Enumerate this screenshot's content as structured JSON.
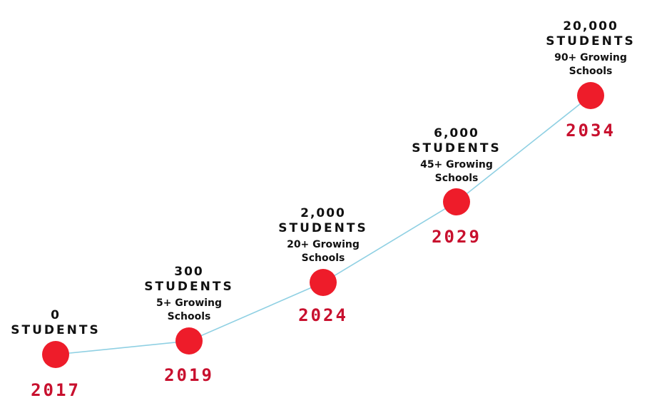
{
  "colors": {
    "marker": "#ee1c2a",
    "line": "#8fd0e3",
    "year": "#c8102e",
    "text": "#111111"
  },
  "chart_data": {
    "type": "line",
    "series": [
      {
        "x": [
          2017,
          2019,
          2024,
          2029,
          2034
        ],
        "values": [
          0,
          300,
          2000,
          6000,
          20000
        ]
      }
    ],
    "points": [
      {
        "year": "2017",
        "count": "0",
        "unit": "STUDENTS",
        "schools": []
      },
      {
        "year": "2019",
        "count": "300",
        "unit": "STUDENTS",
        "schools": [
          "5+ Growing",
          "Schools"
        ]
      },
      {
        "year": "2024",
        "count": "2,000",
        "unit": "STUDENTS",
        "schools": [
          "20+ Growing",
          "Schools"
        ]
      },
      {
        "year": "2029",
        "count": "6,000",
        "unit": "STUDENTS",
        "schools": [
          "45+ Growing",
          "Schools"
        ]
      },
      {
        "year": "2034",
        "count": "20,000",
        "unit": "STUDENTS",
        "schools": [
          "90+ Growing",
          "Schools"
        ]
      }
    ],
    "grid": false,
    "legend": "none"
  }
}
